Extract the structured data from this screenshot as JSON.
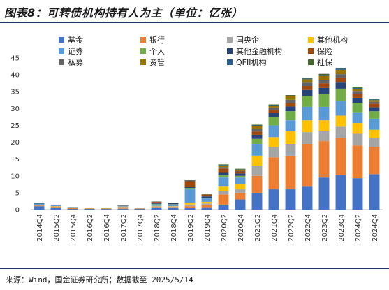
{
  "header": {
    "title": "图表8：可转债机构持有人为主（单位：亿张）"
  },
  "footer": {
    "source": "来源：Wind，国金证券研究所；数据截至 2025/5/14"
  },
  "chart_data": {
    "type": "bar",
    "stacked": true,
    "title": "图表8：可转债机构持有人为主（单位：亿张）",
    "xlabel": "",
    "ylabel": "",
    "ylim": [
      0,
      45
    ],
    "yticks": [
      0,
      5,
      10,
      15,
      20,
      25,
      30,
      35,
      40,
      45
    ],
    "grid": false,
    "legend_position": "top",
    "categories": [
      "2014Q4",
      "2015Q2",
      "2015Q4",
      "2016Q2",
      "2016Q4",
      "2017Q2",
      "2017Q4",
      "2018Q2",
      "2018Q4",
      "2019Q2",
      "2019Q4",
      "2020Q2",
      "2020Q4",
      "2021Q2",
      "2021Q4",
      "2022Q2",
      "2022Q4",
      "2023Q2",
      "2023Q4",
      "2024Q2",
      "2024Q4"
    ],
    "series": [
      {
        "name": "基金",
        "color": "#4472c4",
        "values": [
          1.0,
          0.6,
          0.2,
          0.2,
          0.2,
          0.2,
          0.2,
          0.7,
          0.5,
          0.5,
          0.7,
          1.5,
          3.0,
          5.0,
          6.0,
          6.0,
          7.0,
          9.5,
          10.3,
          9.3,
          10.5
        ]
      },
      {
        "name": "银行",
        "color": "#ed7d31",
        "values": [
          0.2,
          0.2,
          0.3,
          0.1,
          0.1,
          0.1,
          0.1,
          0.1,
          0.2,
          0.5,
          0.6,
          3.0,
          2.0,
          5.0,
          9.5,
          10.0,
          12.5,
          10.8,
          11.0,
          9.7,
          8.0
        ]
      },
      {
        "name": "国央企",
        "color": "#a5a5a5",
        "values": [
          0.1,
          0.1,
          0.1,
          0.1,
          0.0,
          0.5,
          0.1,
          0.2,
          0.2,
          0.5,
          0.5,
          1.0,
          1.0,
          3.0,
          3.0,
          3.5,
          3.5,
          3.0,
          3.3,
          3.5,
          2.7
        ]
      },
      {
        "name": "其他机构",
        "color": "#ffc000",
        "values": [
          0.1,
          0.1,
          0.1,
          0.1,
          0.1,
          0.1,
          0.1,
          0.1,
          0.1,
          0.5,
          0.5,
          1.5,
          1.5,
          3.0,
          3.0,
          3.7,
          3.5,
          3.2,
          3.3,
          3.2,
          2.5
        ]
      },
      {
        "name": "证券",
        "color": "#5b9bd5",
        "values": [
          0.4,
          0.3,
          0.1,
          0.1,
          0.1,
          0.2,
          0.1,
          0.5,
          0.5,
          4.0,
          1.0,
          2.5,
          2.0,
          3.5,
          3.5,
          3.3,
          4.0,
          4.0,
          4.3,
          3.2,
          3.3
        ]
      },
      {
        "name": "个人",
        "color": "#70ad47",
        "values": [
          0.0,
          0.0,
          0.0,
          0.0,
          0.0,
          0.0,
          0.0,
          0.1,
          0.1,
          0.4,
          0.2,
          0.8,
          0.5,
          1.5,
          2.5,
          2.7,
          3.3,
          3.8,
          3.7,
          2.8,
          2.2
        ]
      },
      {
        "name": "其他金融机构",
        "color": "#264478",
        "values": [
          0.1,
          0.1,
          0.0,
          0.0,
          0.0,
          0.1,
          0.0,
          0.4,
          0.3,
          0.3,
          0.4,
          0.8,
          0.7,
          1.2,
          1.2,
          1.4,
          1.7,
          1.8,
          1.8,
          1.5,
          1.2
        ]
      },
      {
        "name": "保险",
        "color": "#9e480e",
        "values": [
          0.1,
          0.0,
          0.0,
          0.0,
          0.0,
          0.0,
          0.0,
          0.2,
          0.1,
          1.7,
          0.5,
          1.0,
          0.6,
          1.0,
          0.8,
          1.0,
          1.2,
          1.4,
          1.5,
          1.2,
          1.0
        ]
      },
      {
        "name": "私募",
        "color": "#636363",
        "values": [
          0.0,
          0.0,
          0.0,
          0.0,
          0.0,
          0.0,
          0.0,
          0.1,
          0.0,
          0.1,
          0.1,
          0.5,
          0.3,
          0.8,
          0.8,
          1.0,
          1.0,
          1.0,
          1.0,
          0.8,
          0.6
        ]
      },
      {
        "name": "资管",
        "color": "#997300",
        "values": [
          0.0,
          0.0,
          0.0,
          0.0,
          0.0,
          0.0,
          0.0,
          0.0,
          0.0,
          0.1,
          0.1,
          0.4,
          0.3,
          0.8,
          0.5,
          1.0,
          1.0,
          1.2,
          1.3,
          0.7,
          0.5
        ]
      },
      {
        "name": "QFII机构",
        "color": "#255e91",
        "values": [
          0.0,
          0.0,
          0.0,
          0.0,
          0.0,
          0.0,
          0.0,
          0.0,
          0.0,
          0.1,
          0.1,
          0.2,
          0.1,
          0.2,
          0.2,
          0.2,
          0.2,
          0.3,
          0.3,
          0.2,
          0.2
        ]
      },
      {
        "name": "社保",
        "color": "#43682b",
        "values": [
          0.0,
          0.0,
          0.0,
          0.0,
          0.0,
          0.0,
          0.0,
          0.0,
          0.0,
          0.0,
          0.0,
          0.2,
          0.1,
          0.2,
          0.2,
          0.2,
          0.2,
          0.3,
          0.3,
          0.3,
          0.2
        ]
      }
    ]
  }
}
